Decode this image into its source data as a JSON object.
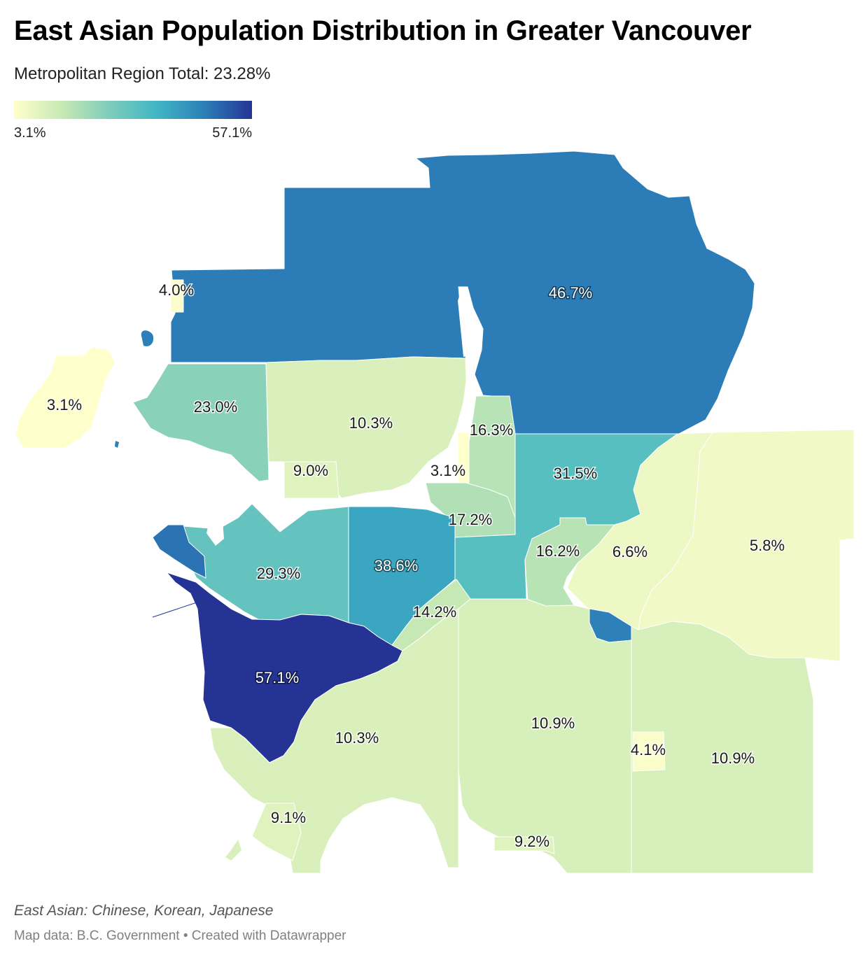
{
  "title": "East Asian Population Distribution in Greater Vancouver",
  "subtitle": "Metropolitan Region Total: 23.28%",
  "legend": {
    "min_label": "3.1%",
    "max_label": "57.1%",
    "min_value": 3.1,
    "max_value": 57.1,
    "stops": [
      "#ffffcc",
      "#c7e9b4",
      "#7fcdbb",
      "#41b6c4",
      "#2c7fb8",
      "#253494"
    ]
  },
  "map_data": {
    "type": "choropleth",
    "unit": "%",
    "regions": [
      {
        "id": "north-east",
        "value": 46.7,
        "label": "46.7%"
      },
      {
        "id": "bowen-island",
        "value": 3.1,
        "label": "3.1%"
      },
      {
        "id": "west-north-shore",
        "value": 23.0,
        "label": "23.0%"
      },
      {
        "id": "north-central",
        "value": 10.3,
        "label": "10.3%"
      },
      {
        "id": "north-reserve",
        "value": 9.0,
        "label": "9.0%"
      },
      {
        "id": "north-strip",
        "value": 4.0,
        "label": "4.0%"
      },
      {
        "id": "inlet-east",
        "value": 16.3,
        "label": "16.3%"
      },
      {
        "id": "inlet-reserve",
        "value": 3.1,
        "label": "3.1%"
      },
      {
        "id": "inlet-south",
        "value": 17.2,
        "label": "17.2%"
      },
      {
        "id": "east-central",
        "value": 31.5,
        "label": "31.5%"
      },
      {
        "id": "west-central",
        "value": 29.3,
        "label": "29.3%"
      },
      {
        "id": "west-point",
        "value": 48.0,
        "label": ""
      },
      {
        "id": "central",
        "value": 38.6,
        "label": "38.6%"
      },
      {
        "id": "central-east-small",
        "value": 16.2,
        "label": "16.2%"
      },
      {
        "id": "east-wide",
        "value": 6.6,
        "label": "6.6%"
      },
      {
        "id": "far-east",
        "value": 5.8,
        "label": "5.8%"
      },
      {
        "id": "southeast-enclave",
        "value": 46.0,
        "label": ""
      },
      {
        "id": "river-strip",
        "value": 14.2,
        "label": "14.2%"
      },
      {
        "id": "south-west-island",
        "value": 57.1,
        "label": "57.1%"
      },
      {
        "id": "south-central",
        "value": 10.3,
        "label": "10.3%"
      },
      {
        "id": "south-inner",
        "value": 10.9,
        "label": "10.9%"
      },
      {
        "id": "south-east",
        "value": 10.9,
        "label": "10.9%"
      },
      {
        "id": "south-enclave",
        "value": 4.1,
        "label": "4.1%"
      },
      {
        "id": "south-coast",
        "value": 9.1,
        "label": "9.1%"
      },
      {
        "id": "south-border",
        "value": 9.2,
        "label": "9.2%"
      }
    ]
  },
  "footer": {
    "note": "East Asian: Chinese, Korean, Japanese",
    "credit": "Map data: B.C. Government • Created with Datawrapper"
  }
}
